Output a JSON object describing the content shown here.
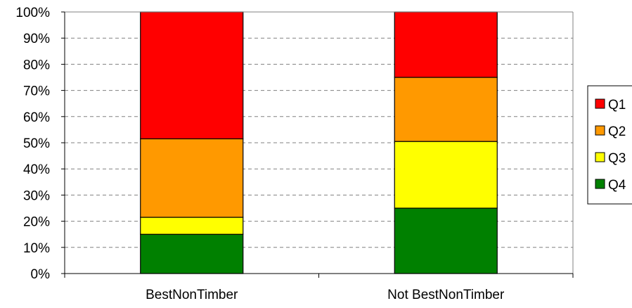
{
  "chart_data": {
    "type": "bar",
    "stacked": true,
    "normalized_percent": true,
    "categories": [
      "BestNonTimber",
      "Not BestNonTimber"
    ],
    "series": [
      {
        "name": "Q4",
        "values": [
          15,
          25
        ],
        "color": "#008000"
      },
      {
        "name": "Q3",
        "values": [
          6.5,
          25.5
        ],
        "color": "#ffff00"
      },
      {
        "name": "Q2",
        "values": [
          30,
          24.5
        ],
        "color": "#ff9900"
      },
      {
        "name": "Q1",
        "values": [
          48.5,
          25
        ],
        "color": "#ff0000"
      }
    ],
    "legend_order": [
      "Q1",
      "Q2",
      "Q3",
      "Q4"
    ],
    "ylim": [
      0,
      100
    ],
    "yticks": [
      "0%",
      "10%",
      "20%",
      "30%",
      "40%",
      "50%",
      "60%",
      "70%",
      "80%",
      "90%",
      "100%"
    ],
    "title": "",
    "xlabel": "",
    "ylabel": "",
    "grid": "horizontal dashed",
    "legend_position": "right"
  }
}
